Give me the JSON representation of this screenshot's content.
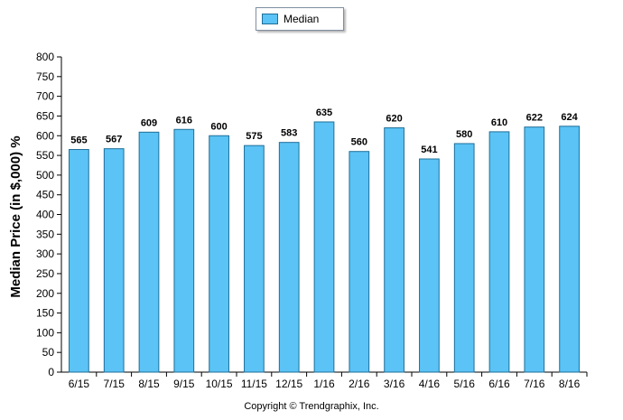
{
  "chart_data": {
    "type": "bar",
    "categories": [
      "6/15",
      "7/15",
      "8/15",
      "9/15",
      "10/15",
      "11/15",
      "12/15",
      "1/16",
      "2/16",
      "3/16",
      "4/16",
      "5/16",
      "6/16",
      "7/16",
      "8/16"
    ],
    "series": [
      {
        "name": "Median",
        "values": [
          565,
          567,
          609,
          616,
          600,
          575,
          583,
          635,
          560,
          620,
          541,
          580,
          610,
          622,
          624
        ]
      }
    ],
    "ylabel": "Median Price (in $,000) %",
    "xlabel": "",
    "ylim": [
      0,
      800
    ],
    "yticks": [
      0,
      50,
      100,
      150,
      200,
      250,
      300,
      350,
      400,
      450,
      500,
      550,
      600,
      650,
      700,
      750,
      800
    ],
    "grid": false,
    "legend": "top-center",
    "data_labels": true,
    "colors": {
      "bar_fill": "#5bc3f5",
      "bar_stroke": "#1f6f99"
    }
  },
  "footer": {
    "copyright": "Copyright © Trendgraphix, Inc."
  }
}
